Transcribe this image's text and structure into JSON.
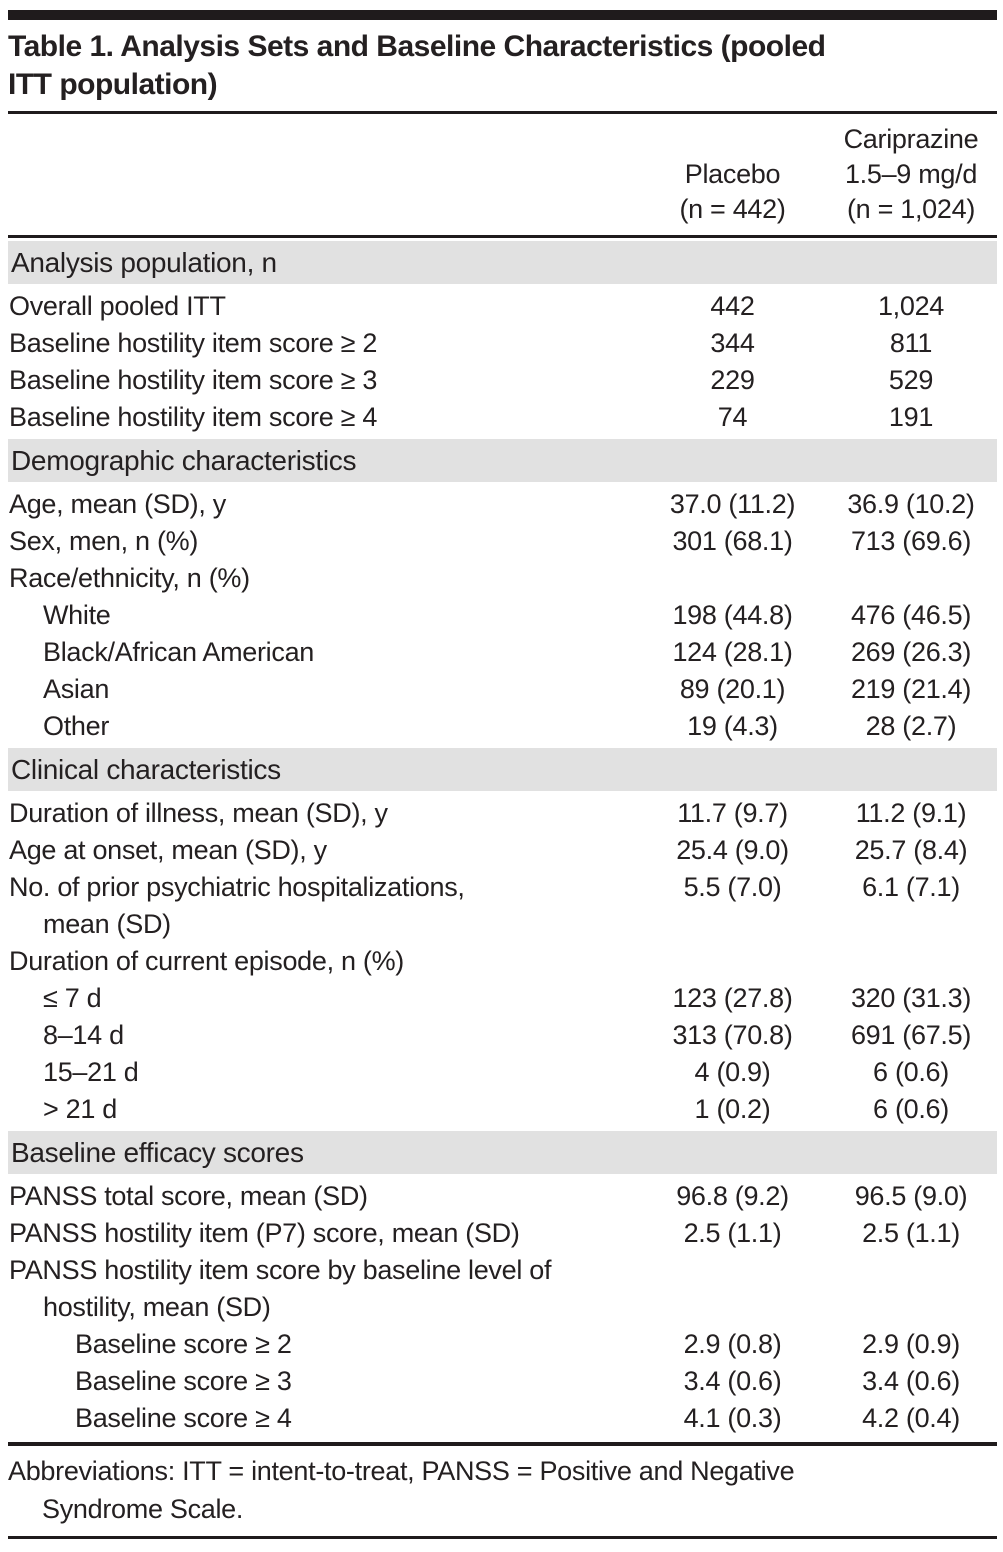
{
  "title": {
    "full": "Table 1. Analysis Sets and Baseline Characteristics (pooled ITT population)",
    "line1": "Table 1. Analysis Sets and Baseline Characteristics (pooled",
    "line2": "ITT population)"
  },
  "columns": {
    "placebo": {
      "lines": [
        "Placebo",
        "(n = 442)"
      ]
    },
    "cariprazine": {
      "lines": [
        "Cariprazine",
        "1.5–9 mg/d",
        "(n = 1,024)"
      ]
    }
  },
  "table": {
    "sections": [
      {
        "header": "Analysis population, n",
        "rows": [
          {
            "label": "Overall pooled ITT",
            "indent": 0,
            "placebo": "442",
            "cariprazine": "1,024"
          },
          {
            "label": "Baseline hostility item score ≥ 2",
            "indent": 0,
            "placebo": "344",
            "cariprazine": "811"
          },
          {
            "label": "Baseline hostility item score ≥ 3",
            "indent": 0,
            "placebo": "229",
            "cariprazine": "529"
          },
          {
            "label": "Baseline hostility item score ≥ 4",
            "indent": 0,
            "placebo": "74",
            "cariprazine": "191"
          }
        ]
      },
      {
        "header": "Demographic characteristics",
        "rows": [
          {
            "label": "Age, mean (SD), y",
            "indent": 0,
            "placebo": "37.0 (11.2)",
            "cariprazine": "36.9 (10.2)"
          },
          {
            "label": "Sex, men, n (%)",
            "indent": 0,
            "placebo": "301 (68.1)",
            "cariprazine": "713 (69.6)"
          },
          {
            "label": "Race/ethnicity, n (%)",
            "indent": 0,
            "placebo": "",
            "cariprazine": ""
          },
          {
            "label": "White",
            "indent": 1,
            "placebo": "198 (44.8)",
            "cariprazine": "476 (46.5)"
          },
          {
            "label": "Black/African American",
            "indent": 1,
            "placebo": "124 (28.1)",
            "cariprazine": "269 (26.3)"
          },
          {
            "label": "Asian",
            "indent": 1,
            "placebo": "89 (20.1)",
            "cariprazine": "219 (21.4)"
          },
          {
            "label": "Other",
            "indent": 1,
            "placebo": "19 (4.3)",
            "cariprazine": "28 (2.7)"
          }
        ]
      },
      {
        "header": "Clinical characteristics",
        "rows": [
          {
            "label": "Duration of illness, mean (SD), y",
            "indent": 0,
            "placebo": "11.7 (9.7)",
            "cariprazine": "11.2 (9.1)"
          },
          {
            "label": "Age at onset, mean (SD), y",
            "indent": 0,
            "placebo": "25.4 (9.0)",
            "cariprazine": "25.7 (8.4)"
          },
          {
            "label": "No. of prior psychiatric hospitalizations,",
            "label2": "mean (SD)",
            "indent": 0,
            "placebo": "5.5 (7.0)",
            "cariprazine": "6.1 (7.1)"
          },
          {
            "label": "Duration of current episode, n (%)",
            "indent": 0,
            "placebo": "",
            "cariprazine": ""
          },
          {
            "label": "≤ 7 d",
            "indent": 1,
            "placebo": "123 (27.8)",
            "cariprazine": "320 (31.3)"
          },
          {
            "label": "8–14 d",
            "indent": 1,
            "placebo": "313 (70.8)",
            "cariprazine": "691 (67.5)"
          },
          {
            "label": "15–21 d",
            "indent": 1,
            "placebo": "4 (0.9)",
            "cariprazine": "6 (0.6)"
          },
          {
            "label": "> 21 d",
            "indent": 1,
            "placebo": "1 (0.2)",
            "cariprazine": "6 (0.6)"
          }
        ]
      },
      {
        "header": "Baseline efficacy scores",
        "rows": [
          {
            "label": "PANSS total score, mean (SD)",
            "indent": 0,
            "placebo": "96.8 (9.2)",
            "cariprazine": "96.5 (9.0)"
          },
          {
            "label": "PANSS hostility item (P7) score, mean (SD)",
            "indent": 0,
            "placebo": "2.5 (1.1)",
            "cariprazine": "2.5 (1.1)"
          },
          {
            "label": "PANSS hostility item score by baseline level of",
            "label2": "hostility, mean (SD)",
            "indent": 0,
            "placebo": "",
            "cariprazine": ""
          },
          {
            "label": "Baseline score ≥ 2",
            "indent": 2,
            "placebo": "2.9 (0.8)",
            "cariprazine": "2.9 (0.9)"
          },
          {
            "label": "Baseline score ≥ 3",
            "indent": 2,
            "placebo": "3.4 (0.6)",
            "cariprazine": "3.4 (0.6)"
          },
          {
            "label": "Baseline score ≥ 4",
            "indent": 2,
            "placebo": "4.1 (0.3)",
            "cariprazine": "4.2 (0.4)"
          }
        ]
      }
    ]
  },
  "footer": {
    "full": "Abbreviations: ITT = intent-to-treat, PANSS = Positive and Negative Syndrome Scale.",
    "line1": "Abbreviations: ITT = intent-to-treat, PANSS = Positive and Negative",
    "line2": "Syndrome Scale."
  },
  "colors": {
    "text": "#242021",
    "rule": "#1f1b1c",
    "section_band": "#e1e1e1",
    "background": "#ffffff"
  }
}
